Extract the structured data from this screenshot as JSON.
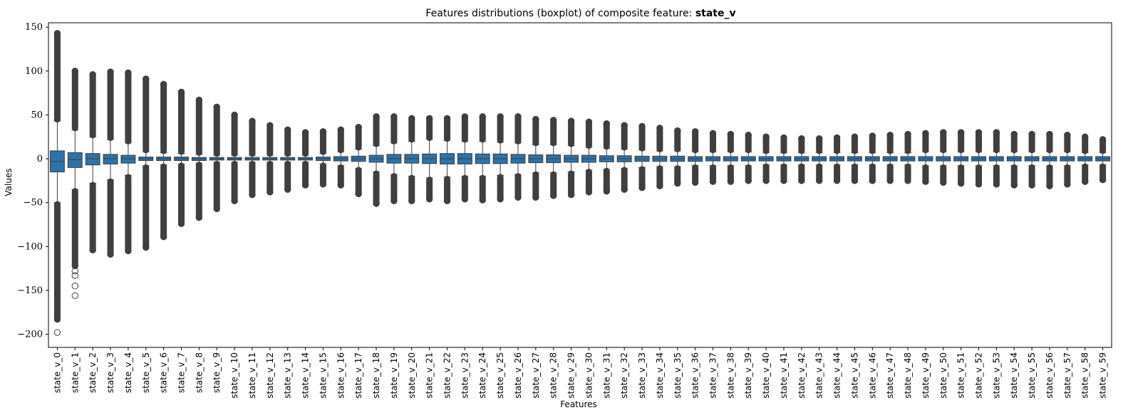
{
  "chart_data": {
    "type": "boxplot",
    "title_prefix": "Features distributions (boxplot) of composite feature:",
    "title_feature": "state_v",
    "xlabel": "Features",
    "ylabel": "Values",
    "ylim": [
      -215,
      155
    ],
    "yticks": [
      150,
      100,
      50,
      0,
      -50,
      -100,
      -150,
      -200
    ],
    "grid": false,
    "box_color": "#2d72a8",
    "line_color": "#3f3f3f",
    "categories": [
      "state_v_0",
      "state_v_1",
      "state_v_2",
      "state_v_3",
      "state_v_4",
      "state_v_5",
      "state_v_6",
      "state_v_7",
      "state_v_8",
      "state_v_9",
      "state_v_10",
      "state_v_11",
      "state_v_12",
      "state_v_13",
      "state_v_14",
      "state_v_15",
      "state_v_16",
      "state_v_17",
      "state_v_18",
      "state_v_19",
      "state_v_20",
      "state_v_21",
      "state_v_22",
      "state_v_23",
      "state_v_24",
      "state_v_25",
      "state_v_26",
      "state_v_27",
      "state_v_28",
      "state_v_29",
      "state_v_30",
      "state_v_31",
      "state_v_32",
      "state_v_33",
      "state_v_34",
      "state_v_35",
      "state_v_36",
      "state_v_37",
      "state_v_38",
      "state_v_39",
      "state_v_40",
      "state_v_41",
      "state_v_42",
      "state_v_43",
      "state_v_44",
      "state_v_45",
      "state_v_46",
      "state_v_47",
      "state_v_48",
      "state_v_49",
      "state_v_50",
      "state_v_51",
      "state_v_52",
      "state_v_53",
      "state_v_54",
      "state_v_55",
      "state_v_56",
      "state_v_57",
      "state_v_58",
      "state_v_59"
    ],
    "boxes": [
      {
        "q1": -15,
        "median": -3,
        "q3": 9,
        "whislo": -50,
        "whishi": 43,
        "fliers_lo": [
          -52,
          -183
        ],
        "fliers_hi": [
          45,
          143
        ],
        "extra_fliers": [
          -198
        ]
      },
      {
        "q1": -10,
        "median": -1,
        "q3": 7,
        "whislo": -35,
        "whishi": 33,
        "fliers_lo": [
          -37,
          -122
        ],
        "fliers_hi": [
          35,
          100
        ],
        "extra_fliers": [
          -128,
          -133,
          -145,
          -156
        ]
      },
      {
        "q1": -7,
        "median": 0,
        "q3": 6,
        "whislo": -28,
        "whishi": 25,
        "fliers_lo": [
          -30,
          -104
        ],
        "fliers_hi": [
          27,
          96
        ],
        "extra_fliers": []
      },
      {
        "q1": -6,
        "median": 0,
        "q3": 5,
        "whislo": -24,
        "whishi": 22,
        "fliers_lo": [
          -26,
          -109
        ],
        "fliers_hi": [
          24,
          99
        ],
        "extra_fliers": []
      },
      {
        "q1": -5,
        "median": 0,
        "q3": 4,
        "whislo": -19,
        "whishi": 18,
        "fliers_lo": [
          -21,
          -105
        ],
        "fliers_hi": [
          20,
          98
        ],
        "extra_fliers": []
      },
      {
        "q1": -2,
        "median": 0,
        "q3": 2,
        "whislo": -8,
        "whishi": 8,
        "fliers_lo": [
          -10,
          -101
        ],
        "fliers_hi": [
          10,
          91
        ],
        "extra_fliers": []
      },
      {
        "q1": -2,
        "median": 0,
        "q3": 2,
        "whislo": -7,
        "whishi": 7,
        "fliers_lo": [
          -9,
          -89
        ],
        "fliers_hi": [
          9,
          85
        ],
        "extra_fliers": []
      },
      {
        "q1": -2,
        "median": 0,
        "q3": 2,
        "whislo": -6,
        "whishi": 6,
        "fliers_lo": [
          -8,
          -74
        ],
        "fliers_hi": [
          8,
          76
        ],
        "extra_fliers": []
      },
      {
        "q1": -2,
        "median": 0,
        "q3": 1.5,
        "whislo": -5,
        "whishi": 5,
        "fliers_lo": [
          -7,
          -67
        ],
        "fliers_hi": [
          7,
          67
        ],
        "extra_fliers": []
      },
      {
        "q1": -1.5,
        "median": 0,
        "q3": 1.5,
        "whislo": -4,
        "whishi": 4,
        "fliers_lo": [
          -6,
          -57
        ],
        "fliers_hi": [
          6,
          59
        ],
        "extra_fliers": []
      },
      {
        "q1": -1.5,
        "median": 0,
        "q3": 1.5,
        "whislo": -4,
        "whishi": 4,
        "fliers_lo": [
          -6,
          -48
        ],
        "fliers_hi": [
          6,
          50
        ],
        "extra_fliers": []
      },
      {
        "q1": -1.5,
        "median": 0,
        "q3": 1.5,
        "whislo": -4,
        "whishi": 4,
        "fliers_lo": [
          -6,
          -41
        ],
        "fliers_hi": [
          6,
          43
        ],
        "extra_fliers": []
      },
      {
        "q1": -1.5,
        "median": 0,
        "q3": 1.5,
        "whislo": -4,
        "whishi": 4,
        "fliers_lo": [
          -6,
          -38
        ],
        "fliers_hi": [
          6,
          38
        ],
        "extra_fliers": []
      },
      {
        "q1": -1.5,
        "median": 0,
        "q3": 1.5,
        "whislo": -4,
        "whishi": 4,
        "fliers_lo": [
          -6,
          -35
        ],
        "fliers_hi": [
          6,
          33
        ],
        "extra_fliers": []
      },
      {
        "q1": -1.5,
        "median": 0,
        "q3": 1.5,
        "whislo": -4,
        "whishi": 4,
        "fliers_lo": [
          -6,
          -30
        ],
        "fliers_hi": [
          6,
          30
        ],
        "extra_fliers": []
      },
      {
        "q1": -2,
        "median": 0,
        "q3": 2,
        "whislo": -6,
        "whishi": 6,
        "fliers_lo": [
          -8,
          -29
        ],
        "fliers_hi": [
          8,
          31
        ],
        "extra_fliers": []
      },
      {
        "q1": -2.5,
        "median": 0,
        "q3": 2.5,
        "whislo": -8,
        "whishi": 8,
        "fliers_lo": [
          -10,
          -30
        ],
        "fliers_hi": [
          10,
          33
        ],
        "extra_fliers": []
      },
      {
        "q1": -3,
        "median": 0,
        "q3": 3,
        "whislo": -11,
        "whishi": 11,
        "fliers_lo": [
          -13,
          -40
        ],
        "fliers_hi": [
          13,
          36
        ],
        "extra_fliers": []
      },
      {
        "q1": -4,
        "median": 0,
        "q3": 4,
        "whislo": -15,
        "whishi": 15,
        "fliers_lo": [
          -17,
          -51
        ],
        "fliers_hi": [
          17,
          48
        ],
        "extra_fliers": []
      },
      {
        "q1": -5,
        "median": 0,
        "q3": 5,
        "whislo": -18,
        "whishi": 18,
        "fliers_lo": [
          -20,
          -48
        ],
        "fliers_hi": [
          20,
          48
        ],
        "extra_fliers": []
      },
      {
        "q1": -5,
        "median": 0,
        "q3": 5,
        "whislo": -20,
        "whishi": 20,
        "fliers_lo": [
          -22,
          -48
        ],
        "fliers_hi": [
          22,
          46
        ],
        "extra_fliers": []
      },
      {
        "q1": -5.5,
        "median": 0,
        "q3": 5.5,
        "whislo": -22,
        "whishi": 22,
        "fliers_lo": [
          -24,
          -46
        ],
        "fliers_hi": [
          24,
          46
        ],
        "extra_fliers": []
      },
      {
        "q1": -6,
        "median": 0,
        "q3": 6,
        "whislo": -21,
        "whishi": 21,
        "fliers_lo": [
          -23,
          -48
        ],
        "fliers_hi": [
          23,
          46
        ],
        "extra_fliers": []
      },
      {
        "q1": -6,
        "median": 0,
        "q3": 6,
        "whislo": -20,
        "whishi": 20,
        "fliers_lo": [
          -22,
          -46
        ],
        "fliers_hi": [
          22,
          48
        ],
        "extra_fliers": []
      },
      {
        "q1": -5.5,
        "median": 0,
        "q3": 5.5,
        "whislo": -20,
        "whishi": 20,
        "fliers_lo": [
          -22,
          -47
        ],
        "fliers_hi": [
          22,
          48
        ],
        "extra_fliers": []
      },
      {
        "q1": -5.5,
        "median": 0,
        "q3": 5.5,
        "whislo": -19,
        "whishi": 19,
        "fliers_lo": [
          -21,
          -46
        ],
        "fliers_hi": [
          21,
          48
        ],
        "extra_fliers": []
      },
      {
        "q1": -5,
        "median": 0,
        "q3": 5,
        "whislo": -18,
        "whishi": 18,
        "fliers_lo": [
          -20,
          -44
        ],
        "fliers_hi": [
          20,
          48
        ],
        "extra_fliers": []
      },
      {
        "q1": -4.5,
        "median": 0,
        "q3": 4.5,
        "whislo": -16,
        "whishi": 16,
        "fliers_lo": [
          -18,
          -44
        ],
        "fliers_hi": [
          18,
          45
        ],
        "extra_fliers": []
      },
      {
        "q1": -4.5,
        "median": 0,
        "q3": 4.5,
        "whislo": -16,
        "whishi": 16,
        "fliers_lo": [
          -18,
          -42
        ],
        "fliers_hi": [
          18,
          44
        ],
        "extra_fliers": []
      },
      {
        "q1": -4,
        "median": 0,
        "q3": 4,
        "whislo": -15,
        "whishi": 15,
        "fliers_lo": [
          -17,
          -41
        ],
        "fliers_hi": [
          17,
          43
        ],
        "extra_fliers": []
      },
      {
        "q1": -4,
        "median": 0,
        "q3": 4,
        "whislo": -13,
        "whishi": 13,
        "fliers_lo": [
          -15,
          -38
        ],
        "fliers_hi": [
          15,
          42
        ],
        "extra_fliers": []
      },
      {
        "q1": -3.5,
        "median": 0,
        "q3": 3.5,
        "whislo": -12,
        "whishi": 12,
        "fliers_lo": [
          -14,
          -37
        ],
        "fliers_hi": [
          14,
          40
        ],
        "extra_fliers": []
      },
      {
        "q1": -3.5,
        "median": 0,
        "q3": 3.5,
        "whislo": -11,
        "whishi": 11,
        "fliers_lo": [
          -13,
          -35
        ],
        "fliers_hi": [
          13,
          38
        ],
        "extra_fliers": []
      },
      {
        "q1": -3,
        "median": 0,
        "q3": 3,
        "whislo": -10,
        "whishi": 10,
        "fliers_lo": [
          -12,
          -33
        ],
        "fliers_hi": [
          12,
          37
        ],
        "extra_fliers": []
      },
      {
        "q1": -3,
        "median": 0,
        "q3": 3,
        "whislo": -9,
        "whishi": 9,
        "fliers_lo": [
          -11,
          -31
        ],
        "fliers_hi": [
          11,
          35
        ],
        "extra_fliers": []
      },
      {
        "q1": -3,
        "median": 0,
        "q3": 3,
        "whislo": -9,
        "whishi": 9,
        "fliers_lo": [
          -11,
          -28
        ],
        "fliers_hi": [
          11,
          32
        ],
        "extra_fliers": []
      },
      {
        "q1": -3,
        "median": 0,
        "q3": 2.5,
        "whislo": -8,
        "whishi": 8,
        "fliers_lo": [
          -10,
          -27
        ],
        "fliers_hi": [
          10,
          31
        ],
        "extra_fliers": []
      },
      {
        "q1": -2.5,
        "median": 0,
        "q3": 2.5,
        "whislo": -8,
        "whishi": 8,
        "fliers_lo": [
          -10,
          -26
        ],
        "fliers_hi": [
          10,
          29
        ],
        "extra_fliers": []
      },
      {
        "q1": -2.5,
        "median": 0,
        "q3": 2.5,
        "whislo": -8,
        "whishi": 8,
        "fliers_lo": [
          -10,
          -26
        ],
        "fliers_hi": [
          10,
          28
        ],
        "extra_fliers": []
      },
      {
        "q1": -2.5,
        "median": 0,
        "q3": 2.5,
        "whislo": -8,
        "whishi": 8,
        "fliers_lo": [
          -10,
          -25
        ],
        "fliers_hi": [
          10,
          27
        ],
        "extra_fliers": []
      },
      {
        "q1": -2.5,
        "median": 0,
        "q3": 2.5,
        "whislo": -7,
        "whishi": 7,
        "fliers_lo": [
          -9,
          -25
        ],
        "fliers_hi": [
          9,
          25
        ],
        "extra_fliers": []
      },
      {
        "q1": -2.5,
        "median": 0,
        "q3": 2.5,
        "whislo": -7,
        "whishi": 7,
        "fliers_lo": [
          -9,
          -25
        ],
        "fliers_hi": [
          9,
          24
        ],
        "extra_fliers": []
      },
      {
        "q1": -2.5,
        "median": 0,
        "q3": 2.5,
        "whislo": -7,
        "whishi": 7,
        "fliers_lo": [
          -9,
          -25
        ],
        "fliers_hi": [
          9,
          23
        ],
        "extra_fliers": []
      },
      {
        "q1": -2.5,
        "median": 0,
        "q3": 2.5,
        "whislo": -7,
        "whishi": 7,
        "fliers_lo": [
          -9,
          -25
        ],
        "fliers_hi": [
          9,
          23
        ],
        "extra_fliers": []
      },
      {
        "q1": -2.5,
        "median": 0,
        "q3": 2.5,
        "whislo": -7,
        "whishi": 7,
        "fliers_lo": [
          -9,
          -25
        ],
        "fliers_hi": [
          9,
          24
        ],
        "extra_fliers": []
      },
      {
        "q1": -2.5,
        "median": 0,
        "q3": 2.5,
        "whislo": -7,
        "whishi": 7,
        "fliers_lo": [
          -9,
          -25
        ],
        "fliers_hi": [
          9,
          25
        ],
        "extra_fliers": []
      },
      {
        "q1": -2.5,
        "median": 0,
        "q3": 2.5,
        "whislo": -7,
        "whishi": 7,
        "fliers_lo": [
          -9,
          -25
        ],
        "fliers_hi": [
          9,
          26
        ],
        "extra_fliers": []
      },
      {
        "q1": -2.5,
        "median": 0,
        "q3": 2.5,
        "whislo": -7,
        "whishi": 7,
        "fliers_lo": [
          -9,
          -25
        ],
        "fliers_hi": [
          9,
          27
        ],
        "extra_fliers": []
      },
      {
        "q1": -2.5,
        "median": 0,
        "q3": 2.5,
        "whislo": -7,
        "whishi": 7,
        "fliers_lo": [
          -9,
          -25
        ],
        "fliers_hi": [
          9,
          28
        ],
        "extra_fliers": []
      },
      {
        "q1": -2.5,
        "median": 0,
        "q3": 2.5,
        "whislo": -8,
        "whishi": 8,
        "fliers_lo": [
          -10,
          -26
        ],
        "fliers_hi": [
          10,
          29
        ],
        "extra_fliers": []
      },
      {
        "q1": -2.5,
        "median": 0,
        "q3": 2.5,
        "whislo": -8,
        "whishi": 8,
        "fliers_lo": [
          -10,
          -27
        ],
        "fliers_hi": [
          10,
          30
        ],
        "extra_fliers": []
      },
      {
        "q1": -2.5,
        "median": 0,
        "q3": 2.5,
        "whislo": -8,
        "whishi": 8,
        "fliers_lo": [
          -10,
          -28
        ],
        "fliers_hi": [
          10,
          30
        ],
        "extra_fliers": []
      },
      {
        "q1": -2.5,
        "median": 0,
        "q3": 2.5,
        "whislo": -8,
        "whishi": 8,
        "fliers_lo": [
          -10,
          -29
        ],
        "fliers_hi": [
          10,
          30
        ],
        "extra_fliers": []
      },
      {
        "q1": -2.5,
        "median": 0,
        "q3": 2.5,
        "whislo": -8,
        "whishi": 8,
        "fliers_lo": [
          -10,
          -29
        ],
        "fliers_hi": [
          10,
          30
        ],
        "extra_fliers": []
      },
      {
        "q1": -2.5,
        "median": 0,
        "q3": 2.5,
        "whislo": -8,
        "whishi": 8,
        "fliers_lo": [
          -10,
          -30
        ],
        "fliers_hi": [
          10,
          28
        ],
        "extra_fliers": []
      },
      {
        "q1": -2.5,
        "median": 0,
        "q3": 2.5,
        "whislo": -8,
        "whishi": 8,
        "fliers_lo": [
          -10,
          -30
        ],
        "fliers_hi": [
          10,
          28
        ],
        "extra_fliers": []
      },
      {
        "q1": -2.5,
        "median": 0,
        "q3": 2.5,
        "whislo": -8,
        "whishi": 8,
        "fliers_lo": [
          -10,
          -31
        ],
        "fliers_hi": [
          10,
          28
        ],
        "extra_fliers": []
      },
      {
        "q1": -2.5,
        "median": 0,
        "q3": 2.5,
        "whislo": -8,
        "whishi": 8,
        "fliers_lo": [
          -10,
          -29
        ],
        "fliers_hi": [
          10,
          27
        ],
        "extra_fliers": []
      },
      {
        "q1": -2.5,
        "median": 0,
        "q3": 2.5,
        "whislo": -7,
        "whishi": 7,
        "fliers_lo": [
          -9,
          -26
        ],
        "fliers_hi": [
          9,
          25
        ],
        "extra_fliers": []
      },
      {
        "q1": -2.5,
        "median": 0,
        "q3": 2.5,
        "whislo": -7,
        "whishi": 7,
        "fliers_lo": [
          -9,
          -24
        ],
        "fliers_hi": [
          9,
          22
        ],
        "extra_fliers": []
      }
    ]
  }
}
